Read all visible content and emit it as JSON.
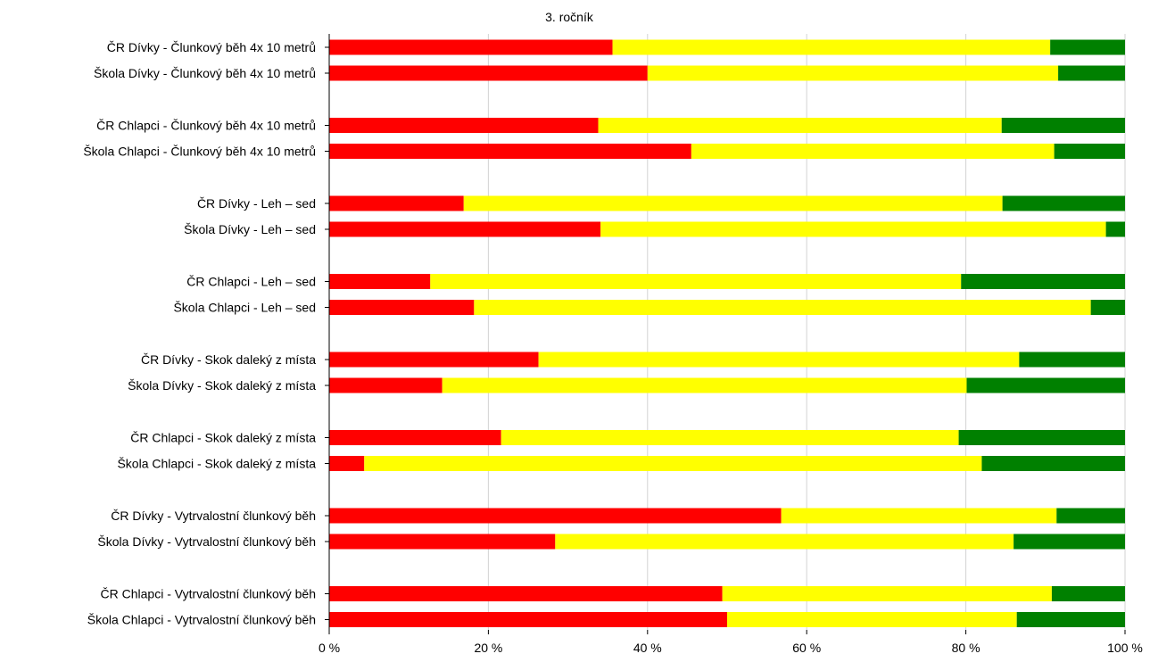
{
  "chart_data": {
    "type": "bar",
    "stacked": true,
    "orientation": "horizontal",
    "title": "3. ročník",
    "xlim": [
      0,
      100
    ],
    "x_ticks": [
      "0 %",
      "20 %",
      "40 %",
      "60 %",
      "80 %",
      "100 %"
    ],
    "grid": true,
    "legend": "none",
    "colors": [
      "#ff0000",
      "#ffff00",
      "#008000"
    ],
    "categories": [
      "ČR Dívky - Člunkový běh 4x 10 metrů",
      "Škola Dívky - Člunkový běh 4x 10 metrů",
      "ČR Chlapci - Člunkový běh 4x 10 metrů",
      "Škola Chlapci - Člunkový běh 4x 10 metrů",
      "ČR Dívky - Leh – sed",
      "Škola Dívky - Leh – sed",
      "ČR Chlapci - Leh – sed",
      "Škola Chlapci - Leh – sed",
      "ČR Dívky - Skok daleký z místa",
      "Škola Dívky - Skok daleký z místa",
      "ČR Chlapci - Skok daleký z místa",
      "Škola Chlapci - Skok daleký z místa",
      "ČR Dívky - Vytrvalostní člunkový běh",
      "Škola Dívky - Vytrvalostní člunkový běh",
      "ČR Chlapci - Vytrvalostní člunkový běh",
      "Škola Chlapci - Vytrvalostní člunkový běh"
    ],
    "series": [
      {
        "values": [
          35.6,
          40.0,
          33.8,
          45.5,
          16.9,
          34.1,
          12.7,
          18.2,
          26.3,
          14.2,
          21.6,
          4.4,
          56.8,
          28.4,
          49.4,
          50.0
        ]
      },
      {
        "values": [
          55.0,
          51.6,
          50.7,
          45.6,
          67.7,
          63.5,
          66.7,
          77.5,
          60.4,
          65.9,
          57.5,
          77.6,
          34.6,
          57.6,
          41.4,
          36.4
        ]
      },
      {
        "values": [
          9.4,
          8.4,
          15.5,
          8.9,
          15.4,
          2.4,
          20.6,
          4.3,
          13.3,
          19.9,
          20.9,
          18.0,
          8.6,
          14.0,
          9.2,
          13.6
        ]
      }
    ]
  }
}
